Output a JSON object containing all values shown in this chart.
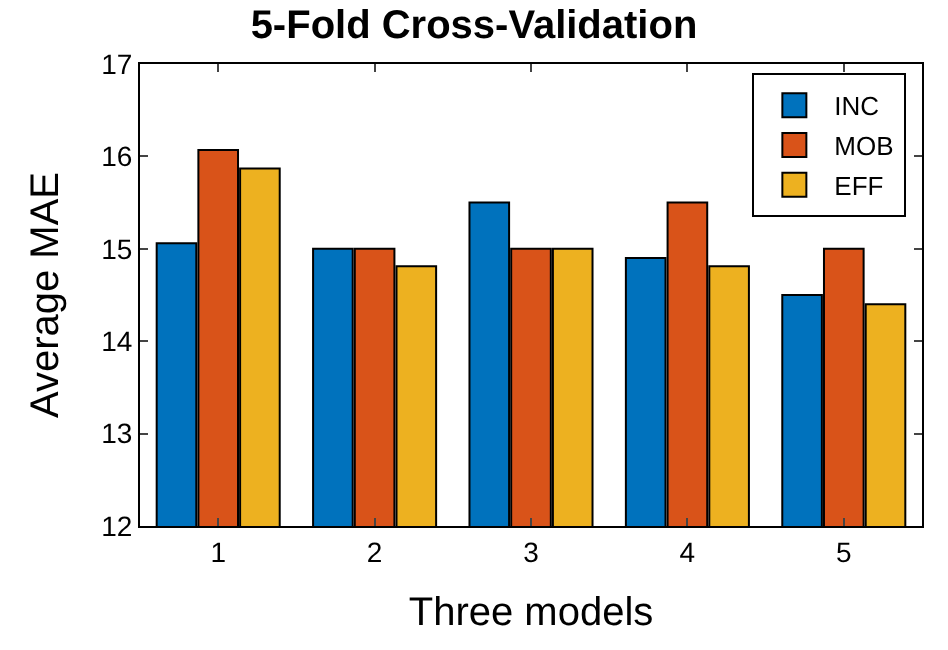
{
  "chart_data": {
    "type": "bar",
    "title": "5-Fold Cross-Validation",
    "xlabel": "Three models",
    "ylabel": "Average MAE",
    "categories": [
      "1",
      "2",
      "3",
      "4",
      "5"
    ],
    "series": [
      {
        "name": "INC",
        "color": "#0072bd",
        "values": [
          15.06,
          15.0,
          15.5,
          14.9,
          14.5
        ]
      },
      {
        "name": "MOB",
        "color": "#d95319",
        "values": [
          16.07,
          15.0,
          15.0,
          15.5,
          15.0
        ]
      },
      {
        "name": "EFF",
        "color": "#edb120",
        "values": [
          15.87,
          14.81,
          15.0,
          14.81,
          14.4
        ]
      }
    ],
    "ylim": [
      12,
      17
    ],
    "yticks": [
      12,
      13,
      14,
      15,
      16,
      17
    ],
    "legend": "top right"
  }
}
